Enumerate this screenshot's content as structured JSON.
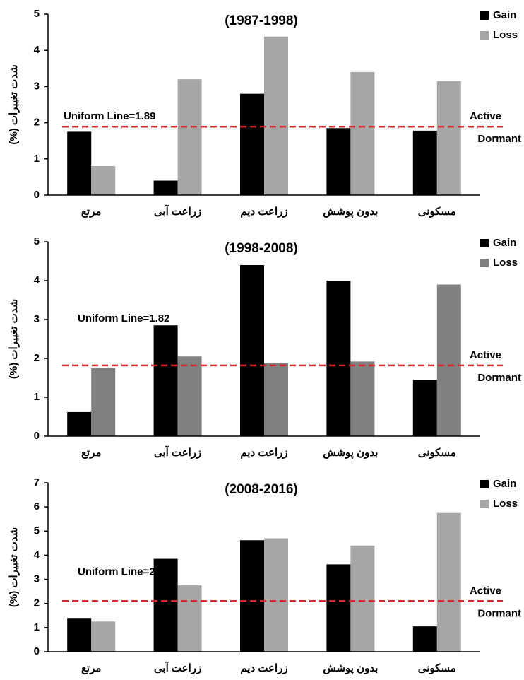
{
  "chart_data": [
    {
      "type": "bar",
      "title": "(1987-1998)",
      "ylabel": "(%) شدت تغییرات",
      "categories": [
        "مرتع",
        "زراعت آبی",
        "زراعت دیم",
        "بدون پوشش",
        "مسکونی"
      ],
      "series": [
        {
          "name": "Gain",
          "color": "#000000",
          "values": [
            1.75,
            0.4,
            2.8,
            1.85,
            1.78
          ]
        },
        {
          "name": "Loss",
          "color": "#a6a6a6",
          "values": [
            0.8,
            3.2,
            4.38,
            3.4,
            3.15
          ]
        }
      ],
      "ylim": [
        0,
        5
      ],
      "yticks": [
        0,
        1,
        2,
        3,
        4,
        5
      ],
      "uniform_line": 1.89,
      "annotation": "Uniform Line=1.89",
      "above_label": "Active",
      "below_label": "Dormant"
    },
    {
      "type": "bar",
      "title": "(1998-2008)",
      "ylabel": "(%) شدت تغییرات",
      "categories": [
        "مرتع",
        "زراعت آبی",
        "زراعت دیم",
        "بدون پوشش",
        "مسکونی"
      ],
      "series": [
        {
          "name": "Gain",
          "color": "#000000",
          "values": [
            0.62,
            2.85,
            4.4,
            4.0,
            1.45
          ]
        },
        {
          "name": "Loss",
          "color": "#808080",
          "values": [
            1.75,
            2.05,
            1.88,
            1.92,
            3.9
          ]
        }
      ],
      "ylim": [
        0,
        5
      ],
      "yticks": [
        0,
        1,
        2,
        3,
        4,
        5
      ],
      "uniform_line": 1.82,
      "annotation": "Uniform Line=1.82",
      "above_label": "Active",
      "below_label": "Dormant"
    },
    {
      "type": "bar",
      "title": "(2008-2016)",
      "ylabel": "(%) شدت تغییرات",
      "categories": [
        "مرتع",
        "زراعت آبی",
        "زراعت دیم",
        "بدون پوشش",
        "مسکونی"
      ],
      "series": [
        {
          "name": "Gain",
          "color": "#000000",
          "values": [
            1.4,
            3.85,
            4.62,
            3.62,
            1.05
          ]
        },
        {
          "name": "Loss",
          "color": "#a6a6a6",
          "values": [
            1.25,
            2.75,
            4.7,
            4.4,
            5.75
          ]
        }
      ],
      "ylim": [
        0,
        7
      ],
      "yticks": [
        0,
        1,
        2,
        3,
        4,
        5,
        6,
        7
      ],
      "uniform_line": 2.1,
      "annotation": "Uniform Line=2.10",
      "above_label": "Active",
      "below_label": "Dormant"
    }
  ]
}
